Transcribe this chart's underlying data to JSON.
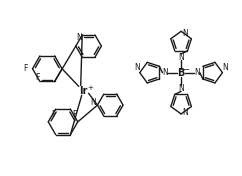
{
  "bg_color": "#ffffff",
  "line_color": "#1a1a1a",
  "lw": 1.0,
  "fs": 5.5
}
